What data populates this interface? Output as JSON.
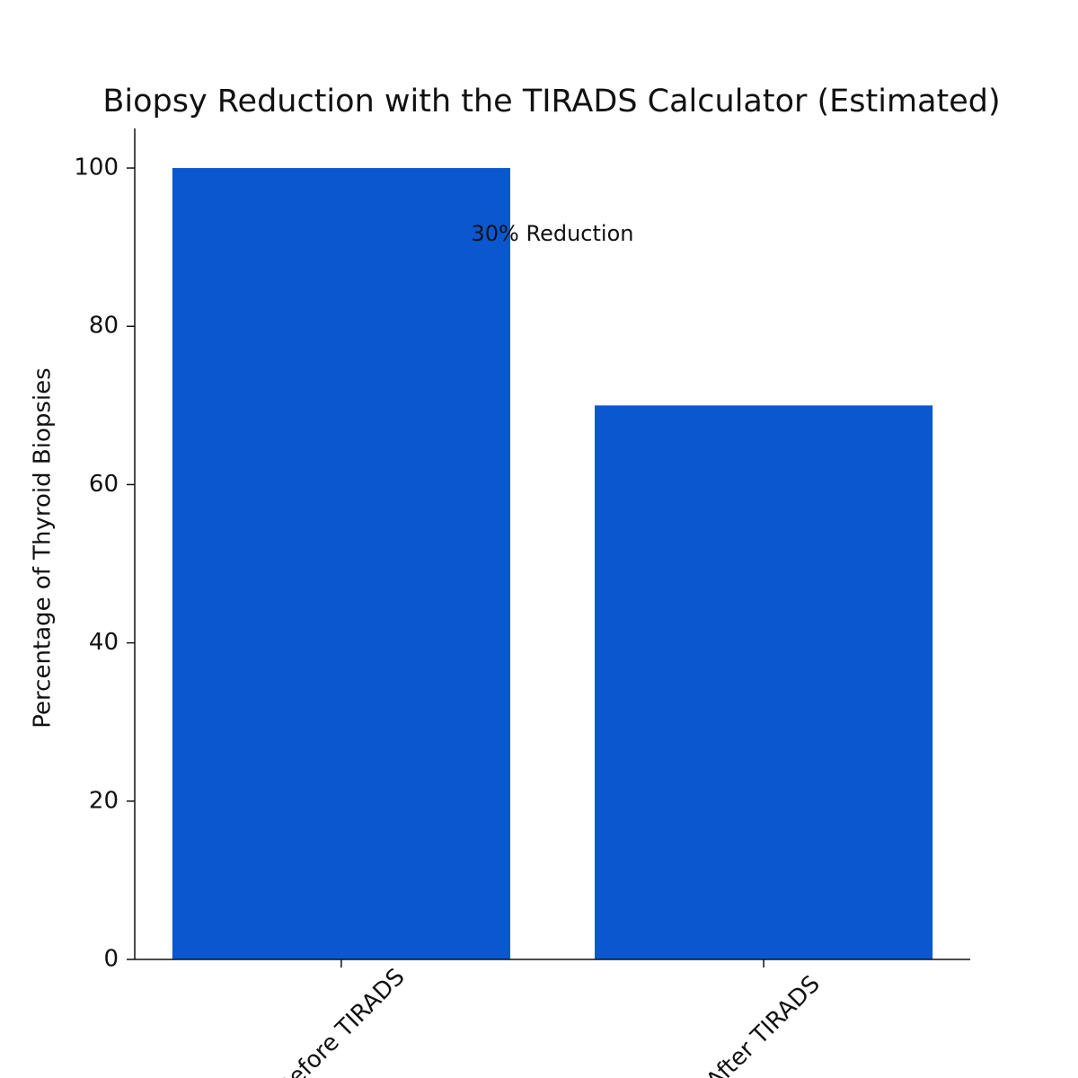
{
  "chart_data": {
    "type": "bar",
    "title": "Biopsy Reduction with the TIRADS Calculator (Estimated)",
    "y_label": "Percentage of Thyroid Biopsies",
    "categories": [
      "Before TIRADS",
      "After TIRADS"
    ],
    "values": [
      100,
      70
    ],
    "color": "#0b57d0",
    "ylim": [
      0,
      105
    ],
    "yticks": [
      0,
      20,
      40,
      60,
      80,
      100
    ],
    "grid": false,
    "annotation": "30% Reduction"
  }
}
